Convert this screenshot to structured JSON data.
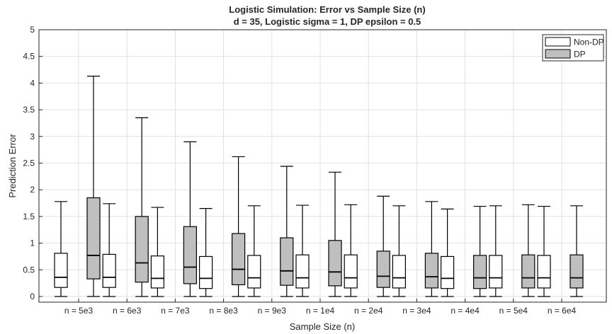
{
  "chart_data": {
    "type": "box",
    "title": "Logistic Simulation: Error vs Sample Size (n)",
    "subtitle": "d = 35, Logistic sigma = 1, DP epsilon = 0.5",
    "xlabel": "Sample Size (n)",
    "ylabel": "Prediction Error",
    "ylim": [
      0,
      5
    ],
    "yticks": [
      "0",
      "0.5",
      "1",
      "1.5",
      "2",
      "2.5",
      "3",
      "3.5",
      "4",
      "4.5",
      "5"
    ],
    "categories": [
      "n = 5e3",
      "n = 6e3",
      "n = 7e3",
      "n = 8e3",
      "n = 9e3",
      "n = 1e4",
      "n = 2e4",
      "n = 3e4",
      "n = 4e4",
      "n = 5e4",
      "n = 6e4"
    ],
    "grid": true,
    "legend_position": "top-right",
    "series": [
      {
        "name": "Non-DP",
        "color": "#ffffff",
        "stats": [
          {
            "min": 0.0,
            "q1": 0.17,
            "median": 0.36,
            "q3": 0.81,
            "max": 1.78
          },
          {
            "min": 0.0,
            "q1": 0.17,
            "median": 0.36,
            "q3": 0.79,
            "max": 1.74
          },
          {
            "min": 0.0,
            "q1": 0.16,
            "median": 0.34,
            "q3": 0.76,
            "max": 1.67
          },
          {
            "min": 0.0,
            "q1": 0.15,
            "median": 0.34,
            "q3": 0.75,
            "max": 1.65
          },
          {
            "min": 0.0,
            "q1": 0.16,
            "median": 0.35,
            "q3": 0.77,
            "max": 1.7
          },
          {
            "min": 0.0,
            "q1": 0.16,
            "median": 0.35,
            "q3": 0.78,
            "max": 1.71
          },
          {
            "min": 0.0,
            "q1": 0.16,
            "median": 0.35,
            "q3": 0.78,
            "max": 1.72
          },
          {
            "min": 0.0,
            "q1": 0.16,
            "median": 0.35,
            "q3": 0.77,
            "max": 1.7
          },
          {
            "min": 0.0,
            "q1": 0.15,
            "median": 0.34,
            "q3": 0.75,
            "max": 1.64
          },
          {
            "min": 0.0,
            "q1": 0.16,
            "median": 0.35,
            "q3": 0.77,
            "max": 1.7
          },
          {
            "min": 0.0,
            "q1": 0.16,
            "median": 0.35,
            "q3": 0.77,
            "max": 1.69
          }
        ]
      },
      {
        "name": "DP",
        "color": "#bfbfbf",
        "stats": [
          {
            "min": 0.0,
            "q1": 0.33,
            "median": 0.77,
            "q3": 1.85,
            "max": 4.13
          },
          {
            "min": 0.0,
            "q1": 0.27,
            "median": 0.63,
            "q3": 1.5,
            "max": 3.35
          },
          {
            "min": 0.0,
            "q1": 0.24,
            "median": 0.55,
            "q3": 1.31,
            "max": 2.9
          },
          {
            "min": 0.0,
            "q1": 0.22,
            "median": 0.51,
            "q3": 1.18,
            "max": 2.62
          },
          {
            "min": 0.0,
            "q1": 0.21,
            "median": 0.48,
            "q3": 1.1,
            "max": 2.44
          },
          {
            "min": 0.0,
            "q1": 0.2,
            "median": 0.46,
            "q3": 1.05,
            "max": 2.33
          },
          {
            "min": 0.0,
            "q1": 0.17,
            "median": 0.38,
            "q3": 0.85,
            "max": 1.88
          },
          {
            "min": 0.0,
            "q1": 0.16,
            "median": 0.37,
            "q3": 0.81,
            "max": 1.78
          },
          {
            "min": 0.0,
            "q1": 0.15,
            "median": 0.35,
            "q3": 0.77,
            "max": 1.69
          },
          {
            "min": 0.0,
            "q1": 0.16,
            "median": 0.35,
            "q3": 0.78,
            "max": 1.72
          },
          {
            "min": 0.0,
            "q1": 0.16,
            "median": 0.35,
            "q3": 0.78,
            "max": 1.7
          }
        ]
      }
    ]
  }
}
